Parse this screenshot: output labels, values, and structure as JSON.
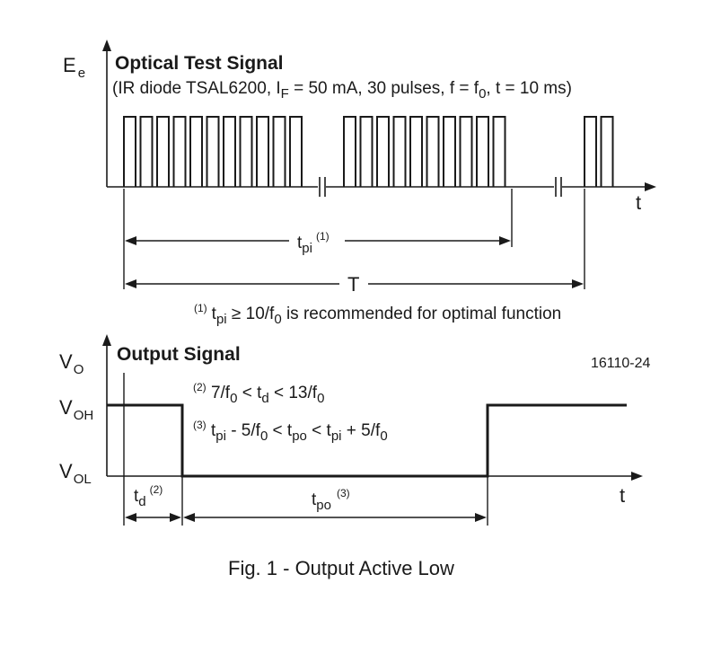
{
  "optical": {
    "axis_label": "E",
    "axis_label_sub": "e",
    "title": "Optical Test Signal",
    "conditions_pre": "(IR diode TSAL6200, I",
    "conditions_sub1": "F",
    "conditions_mid": " = 50 mA, 30 pulses, f = f",
    "conditions_sub2": "0",
    "conditions_post": ", t = 10 ms)",
    "time_label": "t",
    "tpi_main": "t",
    "tpi_sub": "pi",
    "tpi_sup": "(1)",
    "period_label": "T",
    "note_sup": "(1)",
    "note_t": "t",
    "note_sub": "pi",
    "note_mid": " ≥ 10/f",
    "note_sub2": "0",
    "note_post": " is recommended for optimal function"
  },
  "output": {
    "axis_label": "V",
    "axis_label_sub": "O",
    "title": "Output Signal",
    "figure_id": "16110-24",
    "voh": "V",
    "voh_sub": "OH",
    "vol": "V",
    "vol_sub": "OL",
    "time_label": "t",
    "eq1_sup": "(2)",
    "eq1_a": " 7/f",
    "eq1_sub_a": "0",
    "eq1_b": " < t",
    "eq1_sub_b": "d",
    "eq1_c": " < 13/f",
    "eq1_sub_c": "0",
    "eq2_sup": "(3)",
    "eq2_a": " t",
    "eq2_sub_a": "pi",
    "eq2_b": " - 5/f",
    "eq2_sub_b": "0",
    "eq2_c": " < t",
    "eq2_sub_c": "po",
    "eq2_d": " < t",
    "eq2_sub_d": "pi",
    "eq2_e": " + 5/f",
    "eq2_sub_e": "0",
    "td_main": "t",
    "td_sub": "d",
    "td_sup": "(2)",
    "tpo_main": "t",
    "tpo_sub": "po",
    "tpo_sup": "(3)"
  },
  "caption": "Fig. 1 - Output Active Low",
  "pulses": {
    "burst1_count": 11,
    "burst2_count": 10,
    "burst3_count": 2
  }
}
